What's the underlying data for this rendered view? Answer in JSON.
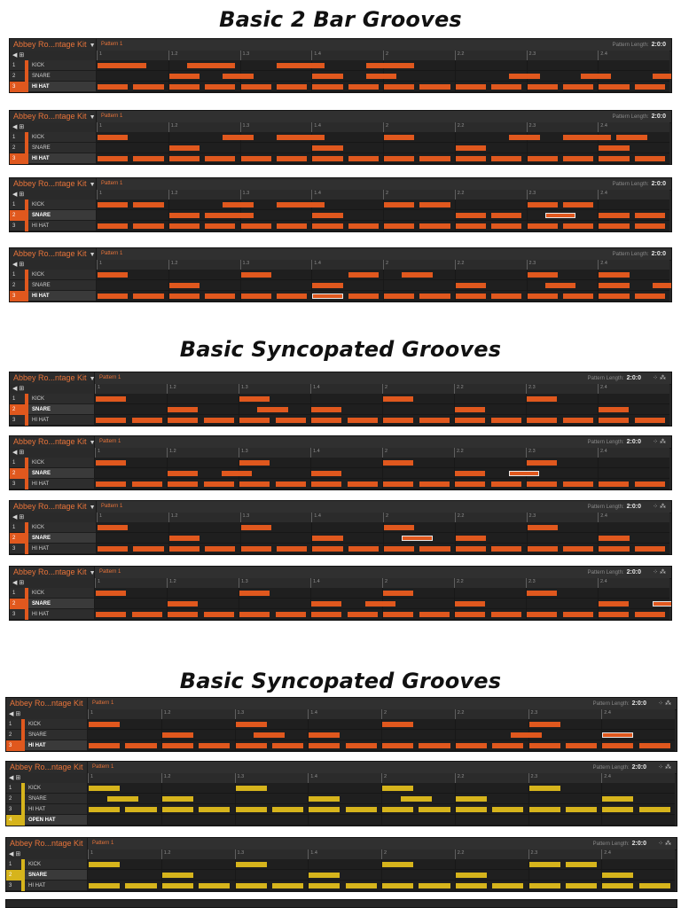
{
  "headings": [
    "Basic 2 Bar Grooves",
    "Basic Syncopated Grooves",
    "Basic Syncopated Grooves"
  ],
  "kit_name": "Abbey Ro...ntage Kit",
  "pattern_name": "Pattern 1",
  "pattern_length_label": "Pattern Length:",
  "pattern_length_value": "2:0:0",
  "ruler_labels": [
    "1",
    "1.2",
    "1.3",
    "1.4",
    "2",
    "2.2",
    "2.3",
    "2.4"
  ],
  "control_icons": "◀ ⊞",
  "colors": {
    "orange": "#e0581e",
    "yellow": "#d6b41c",
    "grid": "#1f1f1f",
    "panel": "#262626"
  },
  "panels": [
    {
      "color": "orange",
      "selected": 3,
      "rows": [
        {
          "num": "1",
          "name": "KICK",
          "steps": [
            0,
            1,
            5,
            6,
            10,
            11,
            15,
            16
          ]
        },
        {
          "num": "2",
          "name": "SNARE",
          "steps": [
            4,
            7,
            12,
            15,
            23,
            27,
            31
          ]
        },
        {
          "num": "3",
          "name": "HI HAT",
          "steps": [
            0,
            2,
            4,
            6,
            8,
            10,
            12,
            14,
            16,
            18,
            20,
            22,
            24,
            26,
            28,
            30
          ]
        }
      ],
      "highlight": {
        "row": 2,
        "step": 31
      }
    },
    {
      "color": "orange",
      "selected": 3,
      "rows": [
        {
          "num": "1",
          "name": "KICK",
          "steps": [
            0,
            7,
            10,
            11,
            16,
            23,
            26,
            27,
            29
          ]
        },
        {
          "num": "2",
          "name": "SNARE",
          "steps": [
            4,
            12,
            20,
            28
          ]
        },
        {
          "num": "3",
          "name": "HI HAT",
          "steps": [
            0,
            2,
            4,
            6,
            8,
            10,
            12,
            14,
            16,
            18,
            20,
            22,
            24,
            26,
            28,
            30
          ]
        }
      ],
      "highlight": null
    },
    {
      "color": "orange",
      "selected": 2,
      "rows": [
        {
          "num": "1",
          "name": "KICK",
          "steps": [
            0,
            2,
            7,
            10,
            11,
            16,
            18,
            24,
            26
          ]
        },
        {
          "num": "2",
          "name": "SNARE",
          "steps": [
            4,
            6,
            7,
            12,
            20,
            22,
            25,
            28,
            30
          ]
        },
        {
          "num": "3",
          "name": "HI HAT",
          "steps": [
            0,
            2,
            4,
            6,
            8,
            10,
            12,
            14,
            16,
            18,
            20,
            22,
            24,
            26,
            28,
            30
          ]
        }
      ],
      "highlight": {
        "row": 1,
        "step": 25
      }
    },
    {
      "color": "orange",
      "selected": 3,
      "rows": [
        {
          "num": "1",
          "name": "KICK",
          "steps": [
            0,
            8,
            14,
            17,
            24,
            28
          ]
        },
        {
          "num": "2",
          "name": "SNARE",
          "steps": [
            4,
            12,
            20,
            25,
            28,
            31
          ]
        },
        {
          "num": "3",
          "name": "HI HAT",
          "steps": [
            0,
            2,
            4,
            6,
            8,
            10,
            12,
            14,
            16,
            18,
            20,
            22,
            24,
            26,
            28,
            30
          ]
        }
      ],
      "highlight": {
        "row": 2,
        "step": 12
      }
    },
    {
      "color": "orange",
      "selected": 2,
      "rows": [
        {
          "num": "1",
          "name": "KICK",
          "steps": [
            0,
            8,
            16,
            24
          ]
        },
        {
          "num": "2",
          "name": "SNARE",
          "steps": [
            4,
            9,
            12,
            20,
            28
          ]
        },
        {
          "num": "3",
          "name": "HI HAT",
          "steps": [
            0,
            2,
            4,
            6,
            8,
            10,
            12,
            14,
            16,
            18,
            20,
            22,
            24,
            26,
            28,
            30
          ]
        }
      ],
      "highlight": {
        "row": 1,
        "step": 25
      }
    },
    {
      "color": "orange",
      "selected": 2,
      "rows": [
        {
          "num": "1",
          "name": "KICK",
          "steps": [
            0,
            8,
            16,
            24
          ]
        },
        {
          "num": "2",
          "name": "SNARE",
          "steps": [
            4,
            7,
            12,
            20,
            23
          ]
        },
        {
          "num": "3",
          "name": "HI HAT",
          "steps": [
            0,
            2,
            4,
            6,
            8,
            10,
            12,
            14,
            16,
            18,
            20,
            22,
            24,
            26,
            28,
            30
          ]
        }
      ],
      "highlight": {
        "row": 1,
        "step": 23
      }
    },
    {
      "color": "orange",
      "selected": 2,
      "rows": [
        {
          "num": "1",
          "name": "KICK",
          "steps": [
            0,
            8,
            16,
            24
          ]
        },
        {
          "num": "2",
          "name": "SNARE",
          "steps": [
            4,
            12,
            17,
            20,
            28
          ]
        },
        {
          "num": "3",
          "name": "HI HAT",
          "steps": [
            0,
            2,
            4,
            6,
            8,
            10,
            12,
            14,
            16,
            18,
            20,
            22,
            24,
            26,
            28,
            30
          ]
        }
      ],
      "highlight": {
        "row": 1,
        "step": 17
      }
    },
    {
      "color": "orange",
      "selected": 2,
      "rows": [
        {
          "num": "1",
          "name": "KICK",
          "steps": [
            0,
            8,
            16,
            24
          ]
        },
        {
          "num": "2",
          "name": "SNARE",
          "steps": [
            4,
            12,
            15,
            20,
            28,
            31
          ]
        },
        {
          "num": "3",
          "name": "HI HAT",
          "steps": [
            0,
            2,
            4,
            6,
            8,
            10,
            12,
            14,
            16,
            18,
            20,
            22,
            24,
            26,
            28,
            30
          ]
        }
      ],
      "highlight": {
        "row": 1,
        "step": 31
      }
    },
    {
      "color": "orange",
      "selected": 3,
      "rows": [
        {
          "num": "1",
          "name": "KICK",
          "steps": [
            0,
            8,
            16,
            24
          ]
        },
        {
          "num": "2",
          "name": "SNARE",
          "steps": [
            4,
            9,
            12,
            23,
            28
          ]
        },
        {
          "num": "3",
          "name": "HI HAT",
          "steps": [
            0,
            2,
            4,
            6,
            8,
            10,
            12,
            14,
            16,
            18,
            20,
            22,
            24,
            26,
            28,
            30
          ]
        }
      ],
      "highlight": {
        "row": 1,
        "step": 28
      }
    },
    {
      "color": "yellow",
      "selected": 4,
      "rows": [
        {
          "num": "1",
          "name": "KICK",
          "steps": [
            0,
            8,
            16,
            24
          ]
        },
        {
          "num": "2",
          "name": "SNARE",
          "steps": [
            1,
            4,
            12,
            17,
            20,
            28
          ]
        },
        {
          "num": "3",
          "name": "HI HAT",
          "steps": [
            0,
            2,
            4,
            6,
            8,
            10,
            12,
            14,
            16,
            18,
            20,
            22,
            24,
            26,
            28,
            30
          ]
        },
        {
          "num": "4",
          "name": "OPEN HAT",
          "steps": []
        }
      ],
      "highlight": null
    },
    {
      "color": "yellow",
      "selected": 2,
      "rows": [
        {
          "num": "1",
          "name": "KICK",
          "steps": [
            0,
            8,
            16,
            24,
            26
          ]
        },
        {
          "num": "2",
          "name": "SNARE",
          "steps": [
            4,
            12,
            20,
            28
          ]
        },
        {
          "num": "3",
          "name": "HI HAT",
          "steps": [
            0,
            2,
            4,
            6,
            8,
            10,
            12,
            14,
            16,
            18,
            20,
            22,
            24,
            26,
            28,
            30
          ]
        }
      ],
      "highlight": null
    }
  ]
}
